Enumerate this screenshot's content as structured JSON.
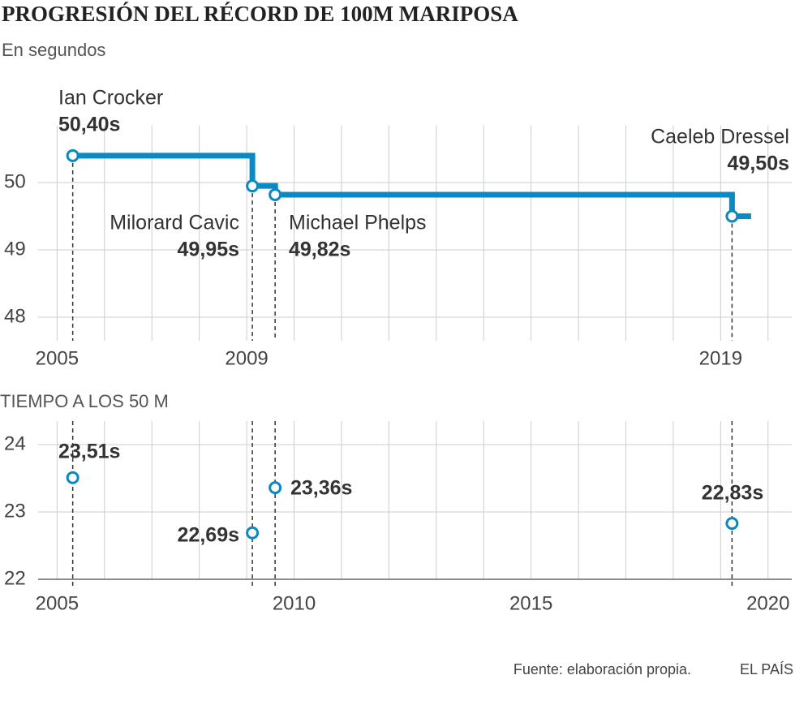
{
  "chart_data": [
    {
      "type": "step",
      "title": "PROGRESIÓN DEL RÉCORD DE 100M MARIPOSA",
      "subtitle": "En segundos",
      "names": [
        "Ian Crocker",
        "Milorard Cavic",
        "Michael Phelps",
        "Caeleb Dressel"
      ],
      "x": [
        2005.33,
        2009.12,
        2009.6,
        2019.24
      ],
      "values": [
        50.4,
        49.95,
        49.82,
        49.5
      ],
      "value_labels": [
        "50,40s",
        "49,95s",
        "49,82s",
        "49,50s"
      ],
      "color": "#0a89c2",
      "xlim": [
        2004.6,
        2020.5
      ],
      "xticks": [
        2005,
        2009,
        2019
      ],
      "xgrid": [
        2005,
        2006,
        2007,
        2008,
        2009,
        2010,
        2011,
        2012,
        2013,
        2014,
        2015,
        2016,
        2017,
        2018,
        2019,
        2020
      ],
      "ylim": [
        47.65,
        50.85
      ],
      "yticks": [
        48,
        49,
        50
      ]
    },
    {
      "type": "scatter",
      "title": "TIEMPO A LOS 50 M",
      "x": [
        2005.33,
        2009.12,
        2009.6,
        2019.24
      ],
      "values": [
        23.51,
        22.69,
        23.36,
        22.83
      ],
      "value_labels": [
        "23,51s",
        "22,69s",
        "23,36s",
        "22,83s"
      ],
      "color": "#0a89c2",
      "xlim": [
        2004.6,
        2020.5
      ],
      "xticks": [
        2005,
        2010,
        2015,
        2020
      ],
      "xgrid": [
        2005,
        2006,
        2007,
        2008,
        2009,
        2010,
        2011,
        2012,
        2013,
        2014,
        2015,
        2016,
        2017,
        2018,
        2019,
        2020
      ],
      "ylim": [
        22,
        24.35
      ],
      "yticks": [
        22,
        23,
        24
      ]
    }
  ],
  "footer": {
    "source": "Fuente: elaboración propia.",
    "credit": "EL PAÍS"
  }
}
